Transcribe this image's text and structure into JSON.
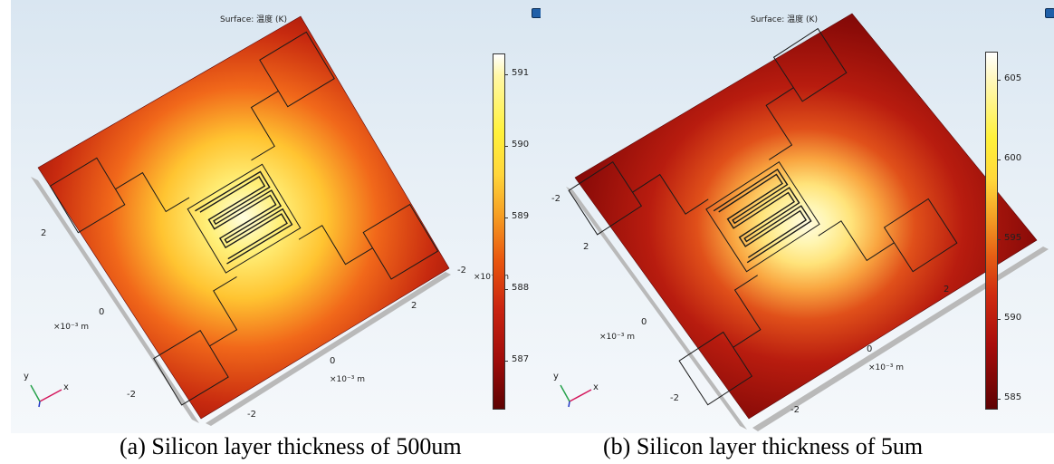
{
  "panels": [
    {
      "id": "a",
      "title": "Surface: 温度 (K)",
      "colorbar_ticks": [
        "591",
        "590",
        "589",
        "588",
        "587"
      ],
      "axis_labels": {
        "left_two": "2",
        "left_zero": "0",
        "left_unit": "×10⁻³ m",
        "bottom_two": "2",
        "bottom_zero": "0",
        "bottom_unit": "×10⁻³ m",
        "bottom_neg_two": "-2",
        "left_neg_two": "-2",
        "right_neg_two": "-2",
        "right_unit": "×10⁻³ m"
      },
      "triad": {
        "x": "x",
        "y": "y"
      },
      "caption": "(a) Silicon layer thickness of 500um"
    },
    {
      "id": "b",
      "title": "Surface: 温度 (K)",
      "colorbar_ticks": [
        "605",
        "600",
        "595",
        "590",
        "585"
      ],
      "axis_labels": {
        "top_neg_two": "-2",
        "left_two": "2",
        "left_zero": "0",
        "left_unit": "×10⁻³ m",
        "bottom_two": "2",
        "bottom_zero": "0",
        "bottom_unit": "×10⁻³ m",
        "bottom_neg_two": "-2",
        "left_neg_two": "-2"
      },
      "triad": {
        "x": "x",
        "y": "y"
      },
      "caption": "(b) Silicon layer thickness of 5um"
    }
  ],
  "colors": {
    "plate_hot_a": "#ffe55c",
    "plate_mid_a": "#e23b0c",
    "plate_cool_a": "#6a0606",
    "plate_hot_b": "#fff4a8",
    "plate_mid_b": "#d42a0a",
    "plate_cool_b": "#6c0707",
    "colorbar_top": "#ffffff",
    "colorbar_yellow": "#fff13a",
    "colorbar_orange": "#e9570e",
    "colorbar_red": "#b50f0b",
    "colorbar_bottom": "#5e0303"
  }
}
